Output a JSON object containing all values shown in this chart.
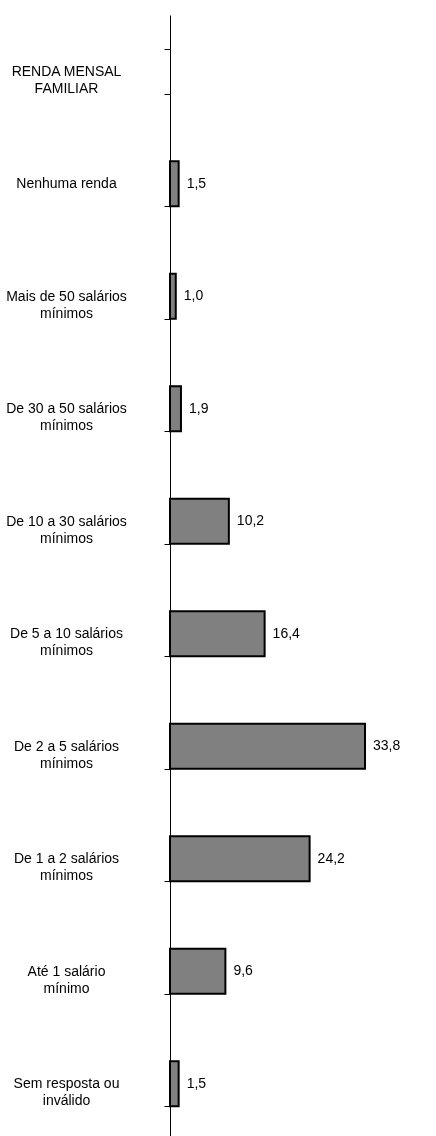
{
  "chart_data": {
    "type": "bar",
    "orientation": "horizontal",
    "categories": [
      "RENDA MENSAL FAMILIAR",
      "Nenhuma renda",
      "Mais de 50 salários mínimos",
      "De 30 a 50 salários mínimos",
      "De 10 a 30 salários mínimos",
      "De 5 a 10 salários mínimos",
      "De 2 a 5 salários mínimos",
      "De 1 a 2 salários mínimos",
      "Até 1 salário mínimo",
      "Sem resposta ou inválido"
    ],
    "values": [
      null,
      1.5,
      1.0,
      1.9,
      10.2,
      16.4,
      33.8,
      24.2,
      9.6,
      1.5
    ],
    "value_labels": [
      null,
      "1,5",
      "1,0",
      "1,9",
      "10,2",
      "16,4",
      "33,8",
      "24,2",
      "9,6",
      "1,5"
    ],
    "color": "#808080",
    "grid": false,
    "tick_labels": "y"
  }
}
